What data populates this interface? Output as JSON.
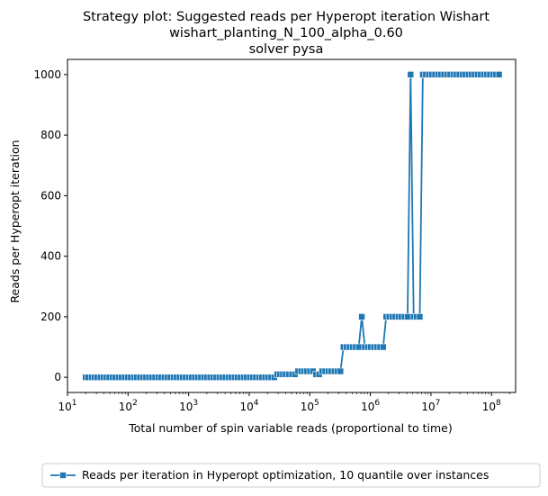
{
  "chart_data": {
    "type": "line",
    "title_lines": [
      "Strategy plot: Suggested reads per Hyperopt iteration Wishart",
      "wishart_planting_N_100_alpha_0.60",
      "solver pysa"
    ],
    "xlabel": "Total number of spin variable reads (proportional to time)",
    "ylabel": "Reads per Hyperopt iteration",
    "xscale": "log",
    "xlim": [
      10,
      250000000
    ],
    "ylim": [
      -50,
      1050
    ],
    "x_ticks": [
      {
        "base": "10",
        "exp": "1"
      },
      {
        "base": "10",
        "exp": "2"
      },
      {
        "base": "10",
        "exp": "3"
      },
      {
        "base": "10",
        "exp": "4"
      },
      {
        "base": "10",
        "exp": "5"
      },
      {
        "base": "10",
        "exp": "6"
      },
      {
        "base": "10",
        "exp": "7"
      },
      {
        "base": "10",
        "exp": "8"
      }
    ],
    "y_ticks": [
      "0",
      "200",
      "400",
      "600",
      "800",
      "1000"
    ],
    "grid": false,
    "legend_position": "below",
    "line_color": "#1f77b4",
    "series": [
      {
        "name": "Reads per iteration in Hyperopt optimization, 10 quantile over instances",
        "marker": "square",
        "x": [
          20,
          22,
          25,
          28,
          31,
          35,
          39,
          44,
          49,
          55,
          62,
          70,
          78,
          88,
          99,
          111,
          125,
          140,
          157,
          176,
          198,
          222,
          250,
          280,
          315,
          354,
          398,
          446,
          501,
          563,
          632,
          710,
          797,
          895,
          1005,
          1129,
          1268,
          1424,
          1599,
          1796,
          2017,
          2265,
          2544,
          2857,
          3208,
          3603,
          4046,
          4544,
          5103,
          5731,
          6436,
          7228,
          8117,
          9116,
          10238,
          11497,
          12912,
          14500,
          16284,
          18287,
          20537,
          23063,
          25900,
          29000,
          32000,
          36000,
          40000,
          45000,
          51000,
          57000,
          64000,
          72000,
          80000,
          90000,
          101000,
          113000,
          127000,
          143000,
          160000,
          180000,
          202000,
          227000,
          255000,
          286000,
          321000,
          360000,
          404000,
          454000,
          510000,
          573000,
          643000,
          722000,
          811000,
          910000,
          1022000,
          1148000,
          1289000,
          1448000,
          1626000,
          1826000,
          2051000,
          2303000,
          2587000,
          2905000,
          3262000,
          3663000,
          4114000,
          4620000,
          5189000,
          5827000,
          6544000,
          7349000,
          8253000,
          9268000,
          10400000,
          11700000,
          13100000,
          14700000,
          16500000,
          18600000,
          20800000,
          23400000,
          26300000,
          29500000,
          33100000,
          37200000,
          41800000,
          46900000,
          52700000,
          59200000,
          66500000,
          74600000,
          83800000,
          94100000,
          105700000,
          118700000,
          133300000
        ],
        "values": [
          0,
          0,
          0,
          0,
          0,
          0,
          0,
          0,
          0,
          0,
          0,
          0,
          0,
          0,
          0,
          0,
          0,
          0,
          0,
          0,
          0,
          0,
          0,
          0,
          0,
          0,
          0,
          0,
          0,
          0,
          0,
          0,
          0,
          0,
          0,
          0,
          0,
          0,
          0,
          0,
          0,
          0,
          0,
          0,
          0,
          0,
          0,
          0,
          0,
          0,
          0,
          0,
          0,
          0,
          0,
          0,
          0,
          0,
          0,
          0,
          0,
          0,
          0,
          10,
          10,
          10,
          10,
          10,
          10,
          10,
          20,
          20,
          20,
          20,
          20,
          20,
          10,
          10,
          20,
          20,
          20,
          20,
          20,
          20,
          20,
          100,
          100,
          100,
          100,
          100,
          100,
          200,
          100,
          100,
          100,
          100,
          100,
          100,
          100,
          200,
          200,
          200,
          200,
          200,
          200,
          200,
          200,
          1000,
          200,
          200,
          200,
          1000,
          1000,
          1000,
          1000,
          1000,
          1000,
          1000,
          1000,
          1000,
          1000,
          1000,
          1000,
          1000,
          1000,
          1000,
          1000,
          1000,
          1000,
          1000,
          1000,
          1000,
          1000,
          1000,
          1000,
          1000,
          1000
        ]
      }
    ]
  }
}
